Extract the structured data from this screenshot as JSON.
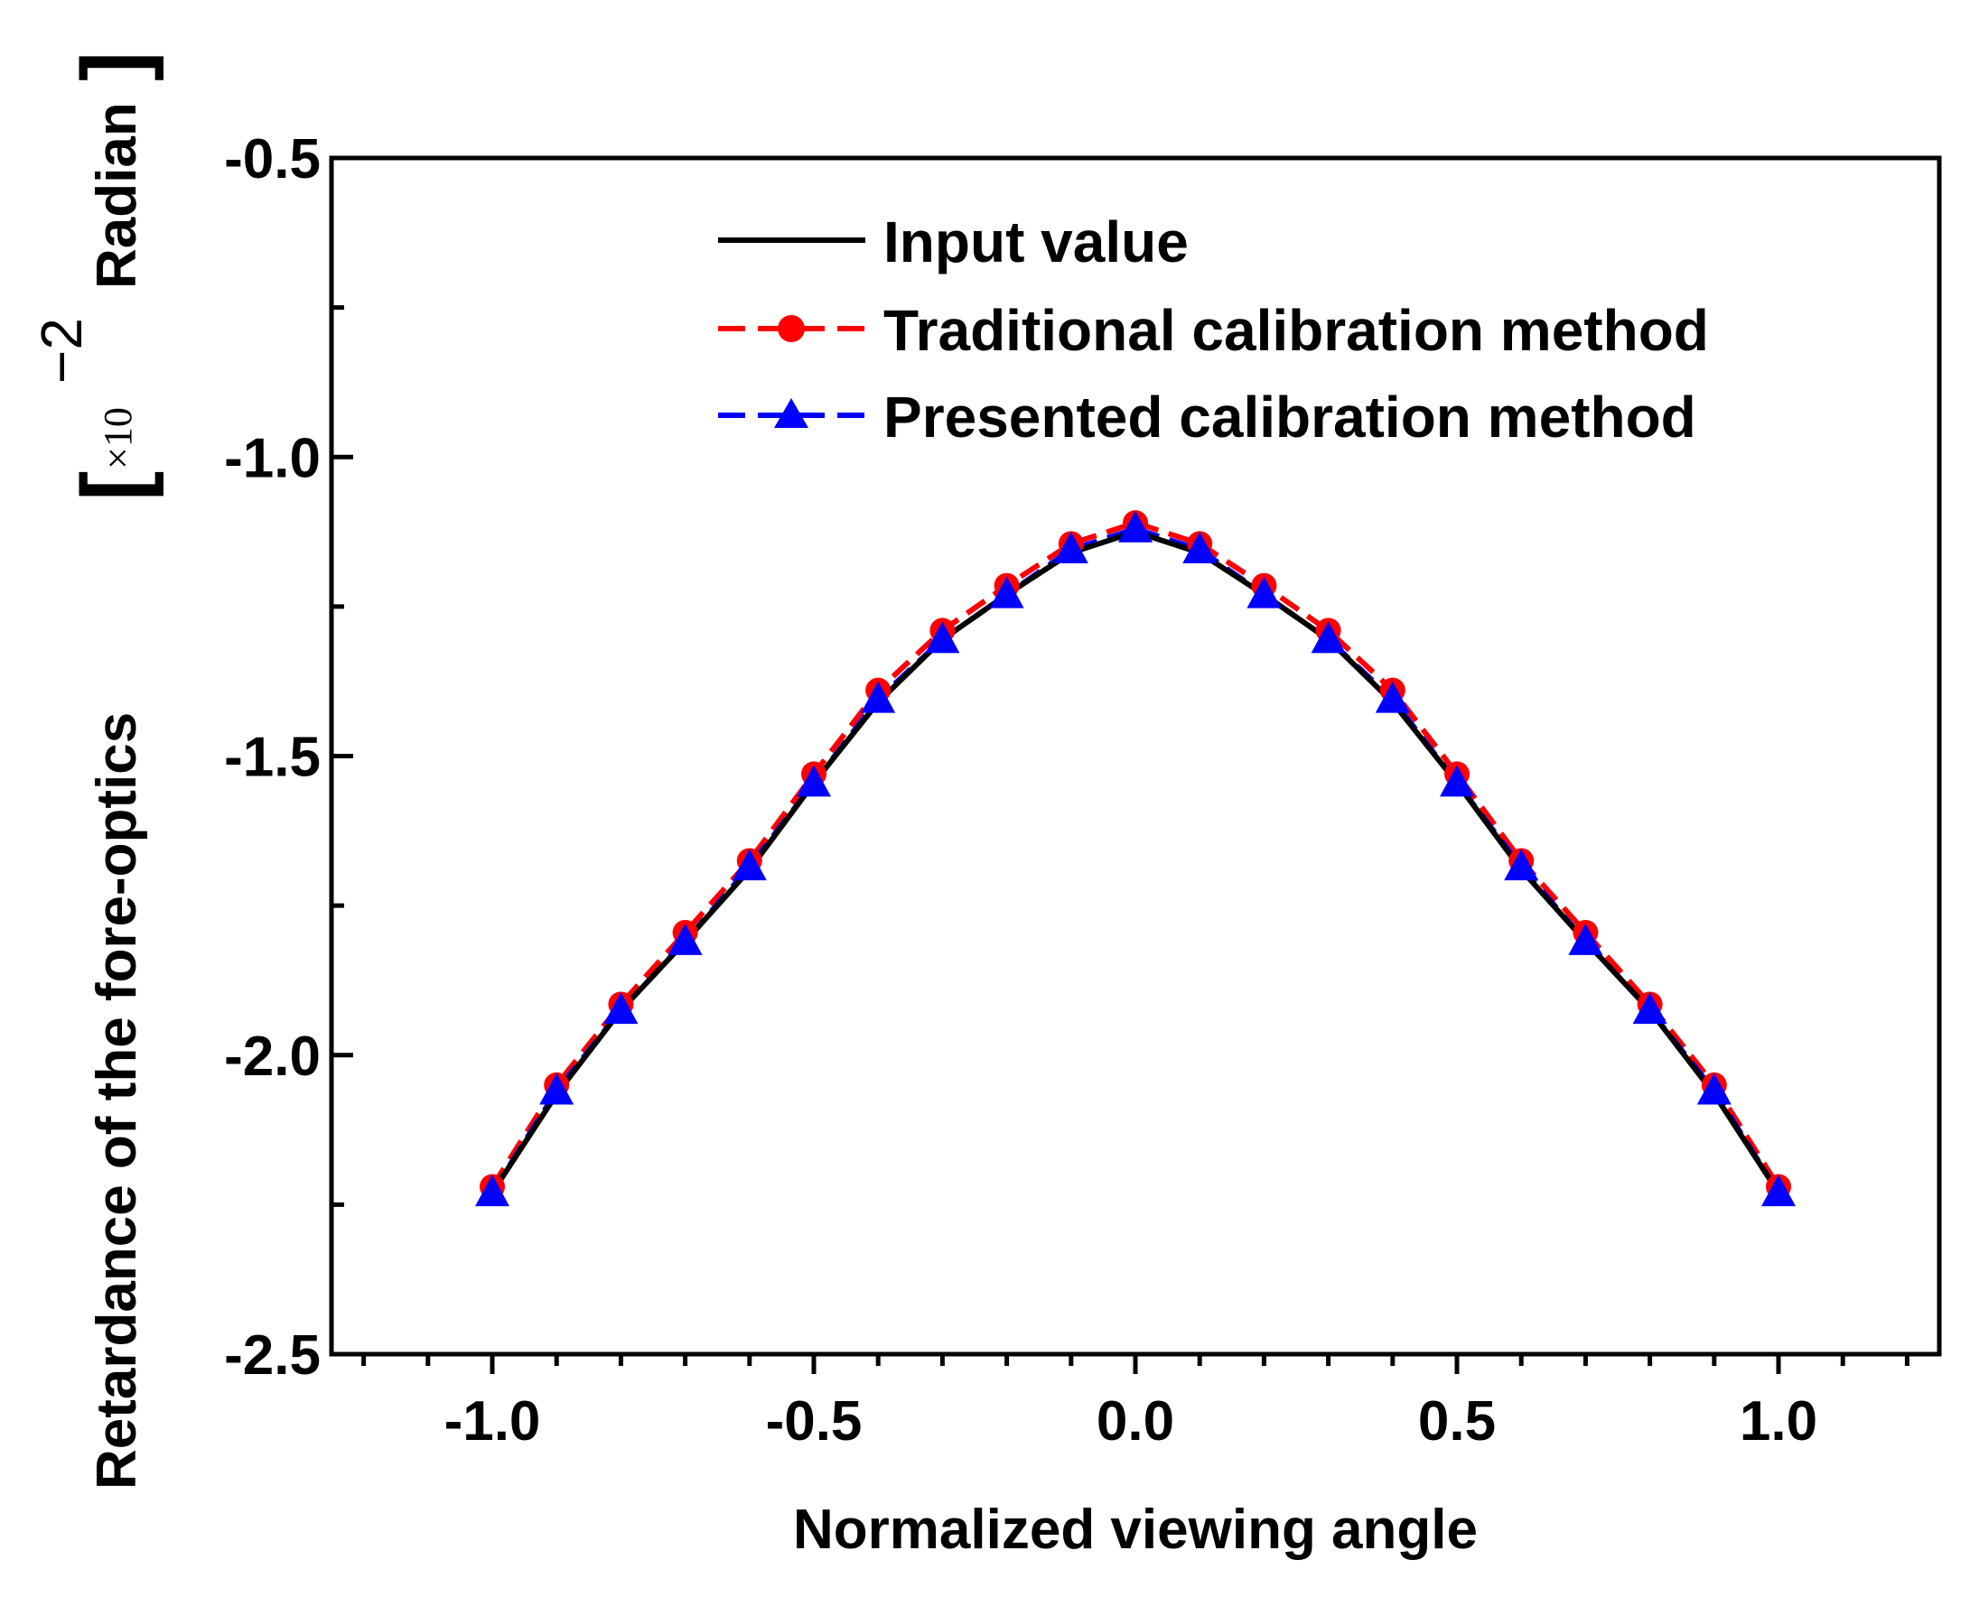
{
  "chart_data": {
    "type": "line",
    "title": "",
    "xlabel": "Normalized viewing angle",
    "ylabel": "Retardance of the fore-optics",
    "ylabel_unit": {
      "multiplier": "×10",
      "exponent": "−2",
      "unit": "Radian"
    },
    "xlim": [
      -1.25,
      1.25
    ],
    "ylim": [
      -2.5,
      -0.5
    ],
    "xticks": [
      -1.0,
      -0.5,
      0.0,
      0.5,
      1.0
    ],
    "xtick_labels": [
      "-1.0",
      "-0.5",
      "0.0",
      "0.5",
      "1.0"
    ],
    "yticks": [
      -2.5,
      -2.0,
      -1.5,
      -1.0,
      -0.5
    ],
    "ytick_labels": [
      "-2.5",
      "-2.0",
      "-1.5",
      "-1.0",
      "-0.5"
    ],
    "grid": false,
    "legend_position": "top-right",
    "x": [
      -1.0,
      -0.9,
      -0.8,
      -0.7,
      -0.6,
      -0.5,
      -0.4,
      -0.3,
      -0.2,
      -0.1,
      0.0,
      0.1,
      0.2,
      0.3,
      0.4,
      0.5,
      0.6,
      0.7,
      0.8,
      0.9,
      1.0
    ],
    "series": [
      {
        "name": "Input value",
        "style": "solid",
        "marker": "none",
        "color": "#000000",
        "values": [
          -2.23,
          -2.065,
          -1.925,
          -1.81,
          -1.69,
          -1.545,
          -1.41,
          -1.305,
          -1.23,
          -1.16,
          -1.125,
          -1.16,
          -1.23,
          -1.305,
          -1.41,
          -1.545,
          -1.69,
          -1.81,
          -1.925,
          -2.065,
          -2.23
        ]
      },
      {
        "name": "Traditional calibration method",
        "style": "dashed",
        "marker": "circle",
        "color": "#ff0000",
        "values": [
          -2.22,
          -2.05,
          -1.915,
          -1.795,
          -1.675,
          -1.53,
          -1.39,
          -1.29,
          -1.215,
          -1.145,
          -1.11,
          -1.145,
          -1.215,
          -1.29,
          -1.39,
          -1.53,
          -1.675,
          -1.795,
          -1.915,
          -2.05,
          -2.22
        ]
      },
      {
        "name": "Presented calibration method",
        "style": "dashed",
        "marker": "triangle",
        "color": "#0000ff",
        "values": [
          -2.23,
          -2.06,
          -1.925,
          -1.81,
          -1.685,
          -1.545,
          -1.405,
          -1.305,
          -1.23,
          -1.155,
          -1.12,
          -1.155,
          -1.23,
          -1.305,
          -1.405,
          -1.545,
          -1.685,
          -1.81,
          -1.925,
          -2.06,
          -2.23
        ]
      }
    ]
  }
}
